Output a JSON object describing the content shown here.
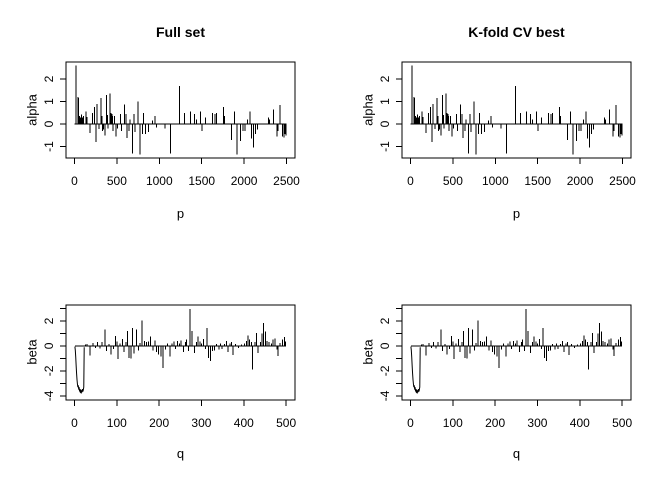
{
  "page": {
    "background": "#ffffff"
  },
  "chart_data": {
    "type": "bar",
    "subtype": "needle-plot (R type='h' style spikes), 2x2 grid; left and right columns show identical data",
    "colors": {
      "stroke": "#000000",
      "text": "#000000",
      "background": "#ffffff"
    },
    "panels": [
      {
        "title": "Full set",
        "dataset": "alpha"
      },
      {
        "title": "K-fold CV best",
        "dataset": "alpha"
      },
      {
        "title": "",
        "dataset": "beta"
      },
      {
        "title": "",
        "dataset": "beta"
      }
    ],
    "datasets": {
      "alpha": {
        "xlabel": "p",
        "ylabel": "alpha",
        "xticks": [
          0,
          500,
          1000,
          1500,
          2000,
          2500
        ],
        "yticks_all": [
          -1,
          0,
          1,
          2
        ],
        "yticks_labeled": [
          -1,
          0,
          1,
          2
        ],
        "xlim": [
          -100,
          2600
        ],
        "ylim": [
          -1.51,
          2.76
        ],
        "x_data_range": [
          1,
          2500
        ],
        "grid": false,
        "spikes": [
          [
            15,
            2.6
          ],
          [
            40,
            1.2
          ],
          [
            48,
            1.15
          ],
          [
            60,
            0.35
          ],
          [
            72,
            0.3
          ],
          [
            85,
            0.42
          ],
          [
            95,
            0.3
          ],
          [
            105,
            0.35
          ],
          [
            135,
            0.55
          ],
          [
            150,
            0.32
          ],
          [
            185,
            -0.4
          ],
          [
            210,
            0.5
          ],
          [
            235,
            0.75
          ],
          [
            252,
            -0.8
          ],
          [
            265,
            0.9
          ],
          [
            290,
            -0.22
          ],
          [
            310,
            1.15
          ],
          [
            322,
            0.35
          ],
          [
            330,
            -0.3
          ],
          [
            342,
            -0.25
          ],
          [
            360,
            -0.5
          ],
          [
            375,
            1.3
          ],
          [
            388,
            0.4
          ],
          [
            398,
            -0.2
          ],
          [
            420,
            1.35
          ],
          [
            432,
            0.5
          ],
          [
            440,
            0.45
          ],
          [
            448,
            0.35
          ],
          [
            455,
            -0.3
          ],
          [
            470,
            0.35
          ],
          [
            474,
            0.35
          ],
          [
            490,
            -0.55
          ],
          [
            505,
            -0.2
          ],
          [
            540,
            0.45
          ],
          [
            556,
            -0.3
          ],
          [
            592,
            0.88
          ],
          [
            607,
            0.45
          ],
          [
            617,
            -0.62
          ],
          [
            640,
            -0.3
          ],
          [
            652,
            0.2
          ],
          [
            686,
            -1.3
          ],
          [
            700,
            0.45
          ],
          [
            715,
            -0.35
          ],
          [
            750,
            1.0
          ],
          [
            775,
            -1.35
          ],
          [
            800,
            -0.45
          ],
          [
            812,
            0.5
          ],
          [
            835,
            -0.45
          ],
          [
            870,
            -0.35
          ],
          [
            920,
            0.15
          ],
          [
            948,
            0.35
          ],
          [
            965,
            -0.15
          ],
          [
            1070,
            -0.2
          ],
          [
            1133,
            -1.3
          ],
          [
            1240,
            1.7
          ],
          [
            1300,
            0.5
          ],
          [
            1368,
            0.55
          ],
          [
            1418,
            0.45
          ],
          [
            1440,
            0.2
          ],
          [
            1488,
            0.55
          ],
          [
            1505,
            -0.3
          ],
          [
            1545,
            0.3
          ],
          [
            1630,
            0.5
          ],
          [
            1655,
            0.45
          ],
          [
            1675,
            0.5
          ],
          [
            1757,
            0.75
          ],
          [
            1768,
            0.35
          ],
          [
            1850,
            -0.7
          ],
          [
            1885,
            0.55
          ],
          [
            1915,
            -1.35
          ],
          [
            1955,
            -0.75
          ],
          [
            1985,
            -0.3
          ],
          [
            2012,
            -0.3
          ],
          [
            2040,
            0.2
          ],
          [
            2070,
            0.55
          ],
          [
            2090,
            -0.65
          ],
          [
            2110,
            -1.05
          ],
          [
            2135,
            -0.45
          ],
          [
            2160,
            -0.25
          ],
          [
            2285,
            0.3
          ],
          [
            2300,
            0.2
          ],
          [
            2345,
            0.65
          ],
          [
            2385,
            -0.55
          ],
          [
            2397,
            -0.3
          ],
          [
            2425,
            0.85
          ],
          [
            2450,
            -0.55
          ],
          [
            2468,
            -0.6
          ],
          [
            2480,
            -0.45
          ],
          [
            2492,
            -0.5
          ]
        ]
      },
      "beta": {
        "xlabel": "q",
        "ylabel": "beta",
        "xticks": [
          0,
          100,
          200,
          300,
          400,
          500
        ],
        "yticks_all": [
          -4,
          -3,
          -2,
          -1,
          0,
          1,
          2,
          3
        ],
        "yticks_labeled": [
          -4,
          -2,
          0,
          2
        ],
        "xlim": [
          -20,
          521
        ],
        "ylim": [
          -4.33,
          3.28
        ],
        "x_data_range": [
          1,
          500
        ],
        "grid": false,
        "curve": [
          [
            1,
            -0.05
          ],
          [
            2,
            -0.35
          ],
          [
            3,
            -0.9
          ],
          [
            4,
            -1.6
          ],
          [
            5,
            -2.2
          ],
          [
            6,
            -2.7
          ],
          [
            7,
            -3.05
          ],
          [
            8,
            -3.3
          ],
          [
            9,
            -3.15
          ],
          [
            10,
            -3.5
          ],
          [
            11,
            -3.3
          ],
          [
            12,
            -3.65
          ],
          [
            13,
            -3.45
          ],
          [
            14,
            -3.75
          ],
          [
            15,
            -3.5
          ],
          [
            16,
            -3.8
          ],
          [
            17,
            -3.55
          ],
          [
            18,
            -3.7
          ],
          [
            19,
            -3.45
          ],
          [
            20,
            -3.65
          ],
          [
            21,
            -3.5
          ],
          [
            22,
            -3.3
          ],
          [
            23,
            -0.1
          ]
        ],
        "spikes": [
          [
            26,
            0.12
          ],
          [
            30,
            0.15
          ],
          [
            37,
            -0.75
          ],
          [
            44,
            0.25
          ],
          [
            50,
            -0.15
          ],
          [
            55,
            0.3
          ],
          [
            60,
            -0.2
          ],
          [
            65,
            0.32
          ],
          [
            72,
            1.3
          ],
          [
            76,
            -0.4
          ],
          [
            82,
            0.15
          ],
          [
            86,
            -0.7
          ],
          [
            92,
            -0.25
          ],
          [
            97,
            0.8
          ],
          [
            100,
            0.35
          ],
          [
            103,
            -1.05
          ],
          [
            108,
            0.2
          ],
          [
            113,
            0.55
          ],
          [
            117,
            -0.5
          ],
          [
            122,
            0.3
          ],
          [
            125,
            1.2
          ],
          [
            129,
            -0.95
          ],
          [
            133,
            -1.0
          ],
          [
            137,
            1.45
          ],
          [
            141,
            -0.6
          ],
          [
            146,
            1.3
          ],
          [
            151,
            -0.35
          ],
          [
            155,
            0.25
          ],
          [
            160,
            2.05
          ],
          [
            165,
            0.4
          ],
          [
            170,
            0.3
          ],
          [
            175,
            0.35
          ],
          [
            180,
            0.75
          ],
          [
            185,
            -0.35
          ],
          [
            190,
            0.45
          ],
          [
            194,
            -0.5
          ],
          [
            199,
            -0.7
          ],
          [
            204,
            -0.85
          ],
          [
            209,
            -1.75
          ],
          [
            215,
            -0.3
          ],
          [
            220,
            0.2
          ],
          [
            226,
            -0.85
          ],
          [
            231,
            0.2
          ],
          [
            235,
            0.35
          ],
          [
            239,
            -0.25
          ],
          [
            244,
            0.4
          ],
          [
            248,
            0.2
          ],
          [
            252,
            0.45
          ],
          [
            257,
            -0.5
          ],
          [
            262,
            0.3
          ],
          [
            265,
            0.5
          ],
          [
            269,
            -0.4
          ],
          [
            273,
            2.95
          ],
          [
            278,
            1.2
          ],
          [
            283,
            -0.55
          ],
          [
            288,
            0.3
          ],
          [
            292,
            0.75
          ],
          [
            296,
            0.35
          ],
          [
            300,
            0.2
          ],
          [
            305,
            0.55
          ],
          [
            309,
            -0.25
          ],
          [
            313,
            1.45
          ],
          [
            317,
            -0.95
          ],
          [
            321,
            -1.2
          ],
          [
            326,
            -0.4
          ],
          [
            331,
            -0.35
          ],
          [
            336,
            0.15
          ],
          [
            341,
            -0.3
          ],
          [
            345,
            0.2
          ],
          [
            349,
            -0.25
          ],
          [
            355,
            0.15
          ],
          [
            359,
            0.4
          ],
          [
            363,
            -0.5
          ],
          [
            368,
            0.2
          ],
          [
            371,
            0.3
          ],
          [
            375,
            -0.72
          ],
          [
            381,
            0.15
          ],
          [
            387,
            -0.18
          ],
          [
            395,
            0.1
          ],
          [
            402,
            0.2
          ],
          [
            407,
            0.4
          ],
          [
            410,
            0.85
          ],
          [
            414,
            0.5
          ],
          [
            418,
            0.3
          ],
          [
            421,
            -1.9
          ],
          [
            426,
            0.3
          ],
          [
            430,
            1.05
          ],
          [
            434,
            -0.55
          ],
          [
            439,
            0.3
          ],
          [
            443,
            1.0
          ],
          [
            447,
            1.85
          ],
          [
            451,
            1.15
          ],
          [
            455,
            0.4
          ],
          [
            460,
            0.3
          ],
          [
            465,
            0.2
          ],
          [
            469,
            0.5
          ],
          [
            474,
            0.6
          ],
          [
            478,
            -0.3
          ],
          [
            481,
            -0.8
          ],
          [
            486,
            0.25
          ],
          [
            491,
            0.5
          ],
          [
            496,
            0.7
          ],
          [
            499,
            0.35
          ]
        ]
      }
    }
  }
}
